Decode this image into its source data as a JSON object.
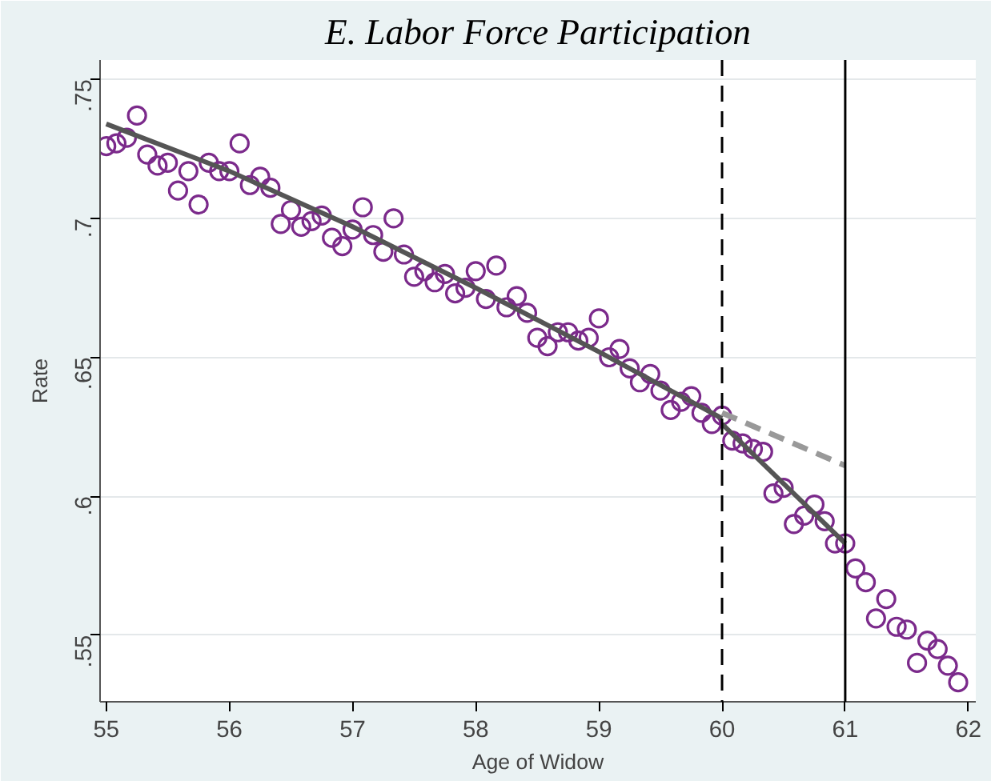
{
  "chart_data": {
    "type": "scatter",
    "title": "E. Labor Force Participation",
    "xlabel": "Age of Widow",
    "ylabel": "Rate",
    "xlim": [
      54.95,
      62.06
    ],
    "ylim": [
      0.526,
      0.757
    ],
    "xticks": [
      55,
      56,
      57,
      58,
      59,
      60,
      61,
      62
    ],
    "yticks": [
      {
        "value": 0.55,
        "label": ".55"
      },
      {
        "value": 0.6,
        "label": ".6"
      },
      {
        "value": 0.65,
        "label": ".65"
      },
      {
        "value": 0.7,
        "label": ".7"
      },
      {
        "value": 0.75,
        "label": ".75"
      }
    ],
    "grid": "y",
    "ref_lines": [
      {
        "axis": "x",
        "value": 60,
        "line_style": "dashed",
        "color": "#000000"
      },
      {
        "axis": "x",
        "value": 61,
        "line_style": "solid",
        "color": "#000000"
      }
    ],
    "series": [
      {
        "color": "#7b2a8b",
        "marker": "circle",
        "x": [
          55.0,
          55.083,
          55.167,
          55.25,
          55.333,
          55.417,
          55.5,
          55.583,
          55.667,
          55.75,
          55.833,
          55.917,
          56.0,
          56.083,
          56.167,
          56.25,
          56.333,
          56.417,
          56.5,
          56.583,
          56.667,
          56.75,
          56.833,
          56.917,
          57.0,
          57.083,
          57.167,
          57.25,
          57.333,
          57.417,
          57.5,
          57.583,
          57.667,
          57.75,
          57.833,
          57.917,
          58.0,
          58.083,
          58.167,
          58.25,
          58.333,
          58.417,
          58.5,
          58.583,
          58.667,
          58.75,
          58.833,
          58.917,
          59.0,
          59.083,
          59.167,
          59.25,
          59.333,
          59.417,
          59.5,
          59.583,
          59.667,
          59.75,
          59.833,
          59.917,
          60.0,
          60.083,
          60.167,
          60.25,
          60.333,
          60.417,
          60.5,
          60.583,
          60.667,
          60.75,
          60.833,
          60.917,
          61.0,
          61.083,
          61.167,
          61.25,
          61.333,
          61.417,
          61.5,
          61.583,
          61.667,
          61.75,
          61.833,
          61.917
        ],
        "values": [
          0.726,
          0.727,
          0.729,
          0.737,
          0.723,
          0.719,
          0.72,
          0.71,
          0.717,
          0.705,
          0.72,
          0.717,
          0.717,
          0.727,
          0.712,
          0.715,
          0.711,
          0.698,
          0.703,
          0.697,
          0.699,
          0.701,
          0.693,
          0.69,
          0.696,
          0.704,
          0.694,
          0.688,
          0.7,
          0.687,
          0.679,
          0.681,
          0.677,
          0.68,
          0.673,
          0.675,
          0.681,
          0.671,
          0.683,
          0.668,
          0.672,
          0.666,
          0.657,
          0.654,
          0.659,
          0.659,
          0.656,
          0.657,
          0.664,
          0.65,
          0.653,
          0.646,
          0.641,
          0.644,
          0.638,
          0.631,
          0.634,
          0.636,
          0.63,
          0.626,
          0.629,
          0.62,
          0.619,
          0.617,
          0.616,
          0.601,
          0.603,
          0.59,
          0.593,
          0.597,
          0.591,
          0.583,
          0.583,
          0.574,
          0.569,
          0.556,
          0.563,
          0.553,
          0.552,
          0.54,
          0.548,
          0.545,
          0.539,
          0.533
        ]
      },
      {
        "type": "line",
        "color": "#555555",
        "line_style": "solid",
        "marker": "none",
        "x": [
          55,
          56,
          57,
          58,
          59,
          60
        ],
        "values": [
          0.734,
          0.717,
          0.697,
          0.675,
          0.652,
          0.628
        ]
      },
      {
        "type": "line",
        "color": "#555555",
        "line_style": "solid",
        "marker": "none",
        "x": [
          60,
          61
        ],
        "values": [
          0.626,
          0.583
        ]
      },
      {
        "type": "line",
        "color": "#999999",
        "line_style": "dashed",
        "marker": "none",
        "x": [
          60,
          61
        ],
        "values": [
          0.63,
          0.611
        ]
      }
    ]
  }
}
